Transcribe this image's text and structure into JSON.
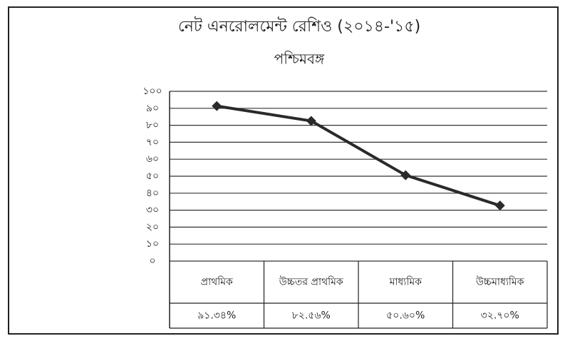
{
  "chart_data": {
    "type": "line",
    "title": "নেট এনরোলমেন্ট রেশিও (২০১৪-'১৫)",
    "subtitle": "পশ্চিমবঙ্গ",
    "categories": [
      "প্রাথমিক",
      "উচ্চতর প্রাথমিক",
      "মাধ্যমিক",
      "উচ্চমাধ্যমিক"
    ],
    "values": [
      91.34,
      82.56,
      50.6,
      32.7
    ],
    "value_labels": [
      "৯১.৩৪%",
      "৮২.৫৬%",
      "৫০.৬০%",
      "৩২.৭০%"
    ],
    "color": "#2a2a2a",
    "ylim": [
      0,
      100
    ],
    "yticks": [
      {
        "value": 0,
        "label": "০"
      },
      {
        "value": 10,
        "label": "১০"
      },
      {
        "value": 20,
        "label": "২০"
      },
      {
        "value": 30,
        "label": "৩০"
      },
      {
        "value": 40,
        "label": "৪০"
      },
      {
        "value": 50,
        "label": "৫০"
      },
      {
        "value": 60,
        "label": "৬০"
      },
      {
        "value": 70,
        "label": "৭০"
      },
      {
        "value": 80,
        "label": "৮০"
      },
      {
        "value": 90,
        "label": "৯০"
      },
      {
        "value": 100,
        "label": "১০০"
      }
    ],
    "grid": true
  }
}
